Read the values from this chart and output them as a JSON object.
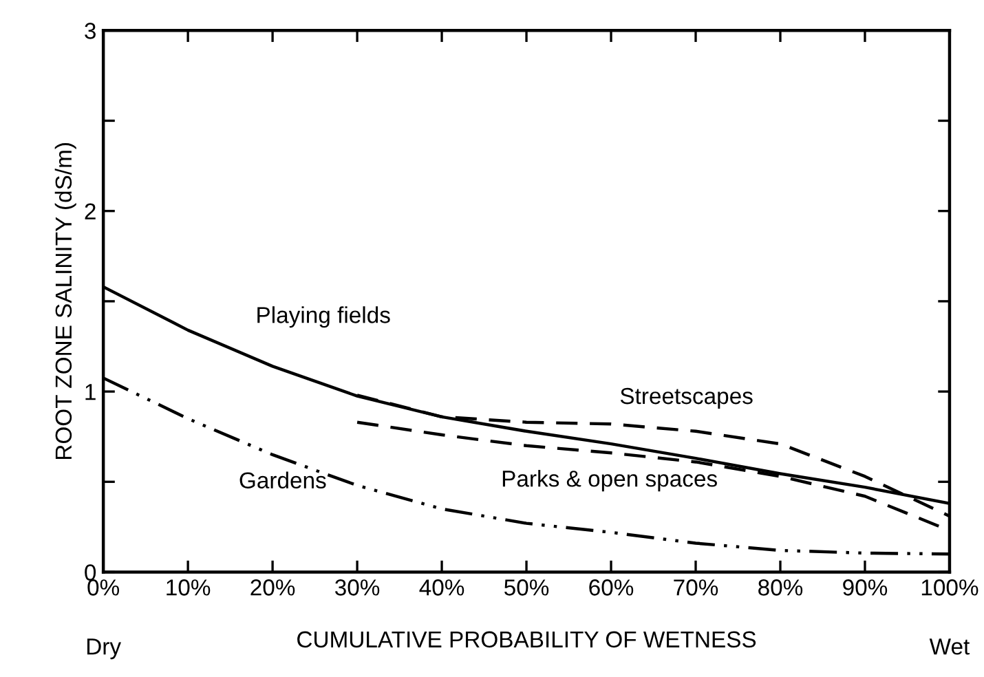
{
  "chart_data": {
    "type": "line",
    "xlabel": "CUMULATIVE PROBABILITY OF WETNESS",
    "ylabel": "ROOT ZONE SALINITY (dS/m)",
    "xlim": [
      0,
      100
    ],
    "ylim": [
      0,
      3
    ],
    "xticks": [
      {
        "value": 0,
        "label": "0%"
      },
      {
        "value": 10,
        "label": "10%"
      },
      {
        "value": 20,
        "label": "20%"
      },
      {
        "value": 30,
        "label": "30%"
      },
      {
        "value": 40,
        "label": "40%"
      },
      {
        "value": 50,
        "label": "50%"
      },
      {
        "value": 60,
        "label": "60%"
      },
      {
        "value": 70,
        "label": "70%"
      },
      {
        "value": 80,
        "label": "80%"
      },
      {
        "value": 90,
        "label": "90%"
      },
      {
        "value": 100,
        "label": "100%"
      }
    ],
    "yticks": [
      0,
      {
        "value": 0.5,
        "label": null
      },
      1,
      {
        "value": 1.5,
        "label": null
      },
      2,
      {
        "value": 2.5,
        "label": null
      },
      3
    ],
    "grid": false,
    "legend": false,
    "marker": "none",
    "series": [
      {
        "name": "Playing fields",
        "color": "#000000",
        "line_style": "solid",
        "x": [
          0,
          10,
          20,
          30,
          40,
          50,
          60,
          70,
          80,
          90,
          100
        ],
        "values": [
          1.58,
          1.34,
          1.14,
          0.975,
          0.86,
          0.78,
          0.71,
          0.63,
          0.545,
          0.47,
          0.38
        ]
      },
      {
        "name": "Streetscapes",
        "color": "#000000",
        "line_style": "dashed",
        "x": [
          30,
          40,
          50,
          60,
          70,
          80,
          90,
          100
        ],
        "values": [
          0.98,
          0.86,
          0.83,
          0.82,
          0.78,
          0.71,
          0.53,
          0.31
        ]
      },
      {
        "name": "Parks & open spaces",
        "color": "#000000",
        "line_style": "dashed",
        "x": [
          30,
          40,
          50,
          60,
          70,
          80,
          90,
          100
        ],
        "values": [
          0.83,
          0.76,
          0.7,
          0.66,
          0.61,
          0.53,
          0.42,
          0.23
        ]
      },
      {
        "name": "Gardens",
        "color": "#000000",
        "line_style": "dashdotdot",
        "x": [
          0,
          10,
          20,
          30,
          40,
          50,
          60,
          70,
          80,
          90,
          100
        ],
        "values": [
          1.075,
          0.85,
          0.65,
          0.48,
          0.35,
          0.27,
          0.22,
          0.16,
          0.12,
          0.105,
          0.1
        ]
      }
    ],
    "annotations": [
      "Dry",
      "Wet"
    ]
  }
}
